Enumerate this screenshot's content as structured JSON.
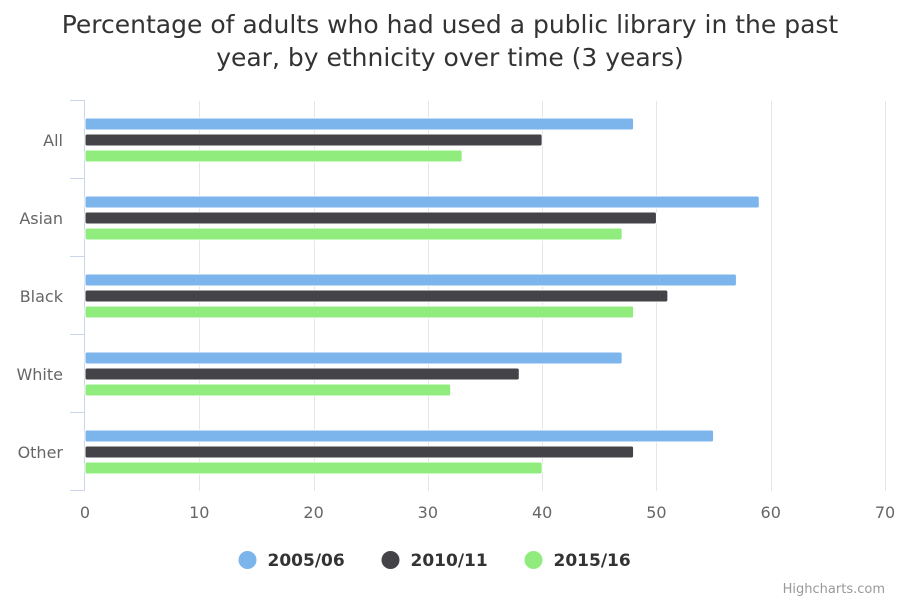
{
  "chart_data": {
    "type": "bar",
    "orientation": "horizontal",
    "title": "Percentage of adults who had used a public library in the past year, by ethnicity over time (3 years)",
    "categories": [
      "All",
      "Asian",
      "Black",
      "White",
      "Other"
    ],
    "series": [
      {
        "name": "2005/06",
        "color": "#7cb5ec",
        "values": [
          48,
          59,
          57,
          47,
          55
        ]
      },
      {
        "name": "2010/11",
        "color": "#434348",
        "values": [
          40,
          50,
          51,
          38,
          48
        ]
      },
      {
        "name": "2015/16",
        "color": "#90ed7d",
        "values": [
          33,
          47,
          48,
          32,
          40
        ]
      }
    ],
    "xlim": [
      0,
      70
    ],
    "ticks": [
      "0",
      "10",
      "20",
      "30",
      "40",
      "50",
      "60",
      "70"
    ],
    "grid": true,
    "legend_position": "bottom-center"
  },
  "credits": "Highcharts.com"
}
